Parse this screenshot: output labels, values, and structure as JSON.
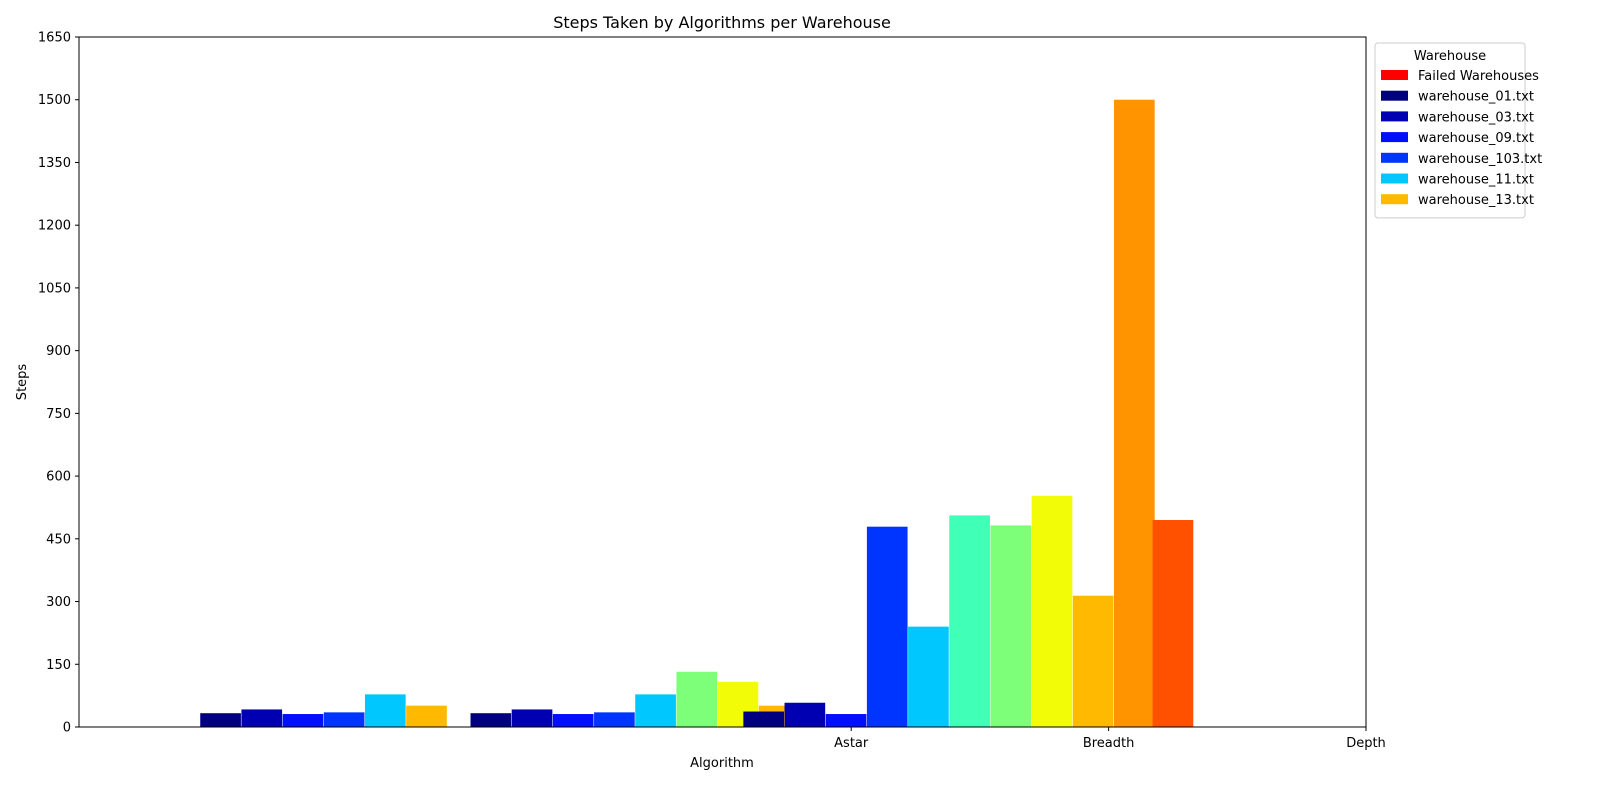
{
  "chart_data": {
    "type": "bar",
    "title": "Steps Taken by Algorithms per Warehouse",
    "xlabel": "Algorithm",
    "ylabel": "Steps",
    "ylim": [
      0,
      1650
    ],
    "yticks": [
      0,
      150,
      300,
      450,
      600,
      750,
      900,
      1050,
      1200,
      1350,
      1500,
      1650
    ],
    "xticks": [
      {
        "label": "Astar",
        "pos": 3
      },
      {
        "label": "Breadth",
        "pos": 4
      },
      {
        "label": "Depth",
        "pos": 5
      }
    ],
    "xlim": [
      0,
      5
    ],
    "grid": false,
    "legend": {
      "title": "Warehouse",
      "placement": "outside-top-right",
      "entries": [
        {
          "label": "Failed Warehouses",
          "color": "#ff0000"
        },
        {
          "label": "warehouse_01.txt",
          "color": "#000080"
        },
        {
          "label": "warehouse_03.txt",
          "color": "#0000b2"
        },
        {
          "label": "warehouse_09.txt",
          "color": "#0010ff"
        },
        {
          "label": "warehouse_103.txt",
          "color": "#0034ff"
        },
        {
          "label": "warehouse_11.txt",
          "color": "#00c8ff"
        },
        {
          "label": "warehouse_13.txt",
          "color": "#ffb900"
        }
      ]
    },
    "bars": [
      {
        "x": 0.55,
        "value": 33,
        "color": "#000080"
      },
      {
        "x": 0.71,
        "value": 42,
        "color": "#0000b2"
      },
      {
        "x": 0.87,
        "value": 31,
        "color": "#0010ff"
      },
      {
        "x": 1.03,
        "value": 35,
        "color": "#0034ff"
      },
      {
        "x": 1.19,
        "value": 78,
        "color": "#00c8ff"
      },
      {
        "x": 1.35,
        "value": 51,
        "color": "#ffb900"
      },
      {
        "x": 1.6,
        "value": 33,
        "color": "#000080"
      },
      {
        "x": 1.76,
        "value": 42,
        "color": "#0000b2"
      },
      {
        "x": 1.92,
        "value": 31,
        "color": "#0010ff"
      },
      {
        "x": 2.08,
        "value": 35,
        "color": "#0034ff"
      },
      {
        "x": 2.24,
        "value": 78,
        "color": "#00c8ff"
      },
      {
        "x": 2.4,
        "value": 132,
        "color": "#7dff7a"
      },
      {
        "x": 2.56,
        "value": 108,
        "color": "#f1fc06"
      },
      {
        "x": 2.72,
        "value": 51,
        "color": "#ffb900"
      },
      {
        "x": 2.66,
        "value": 37,
        "color": "#000080"
      },
      {
        "x": 2.82,
        "value": 58,
        "color": "#0000b2"
      },
      {
        "x": 2.98,
        "value": 31,
        "color": "#0010ff"
      },
      {
        "x": 3.14,
        "value": 479,
        "color": "#0034ff"
      },
      {
        "x": 3.3,
        "value": 240,
        "color": "#00c8ff"
      },
      {
        "x": 3.46,
        "value": 506,
        "color": "#40ffb7"
      },
      {
        "x": 3.62,
        "value": 482,
        "color": "#7dff7a"
      },
      {
        "x": 3.78,
        "value": 553,
        "color": "#f1fc06"
      },
      {
        "x": 3.94,
        "value": 314,
        "color": "#ffb900"
      },
      {
        "x": 4.1,
        "value": 1500,
        "color": "#ff9400"
      },
      {
        "x": 4.25,
        "value": 495,
        "color": "#ff5100"
      }
    ],
    "bar_width": 0.158
  }
}
